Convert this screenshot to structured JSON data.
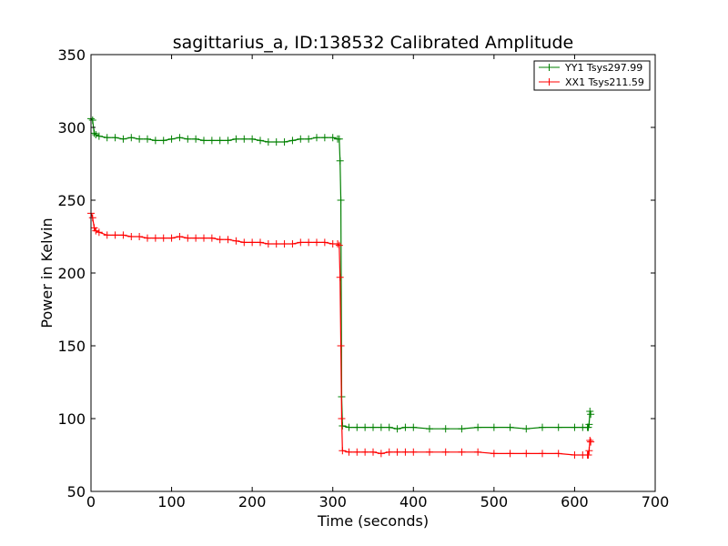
{
  "chart_data": {
    "type": "line",
    "title": "sagittarius_a, ID:138532 Calibrated Amplitude",
    "xlabel": "Time (seconds)",
    "ylabel": "Power in Kelvin",
    "xlim": [
      0,
      700
    ],
    "ylim": [
      50,
      350
    ],
    "xticks": [
      0,
      100,
      200,
      300,
      400,
      500,
      600,
      700
    ],
    "yticks": [
      50,
      100,
      150,
      200,
      250,
      300,
      350
    ],
    "grid": false,
    "legend_position": "top-right",
    "series": [
      {
        "name": "YY1 Tsys297.99",
        "color": "#008000",
        "marker": "+",
        "x": [
          0,
          2,
          4,
          6,
          10,
          20,
          30,
          40,
          50,
          60,
          70,
          80,
          90,
          100,
          110,
          120,
          130,
          140,
          150,
          160,
          170,
          180,
          190,
          200,
          210,
          220,
          230,
          240,
          250,
          260,
          270,
          280,
          290,
          300,
          306,
          308,
          309,
          310,
          311,
          312,
          320,
          330,
          340,
          350,
          360,
          370,
          380,
          390,
          400,
          420,
          440,
          460,
          480,
          500,
          520,
          540,
          560,
          580,
          600,
          610,
          616,
          617,
          618,
          619,
          620
        ],
        "y": [
          306,
          305,
          296,
          295,
          294,
          293,
          293,
          292,
          293,
          292,
          292,
          291,
          291,
          292,
          293,
          292,
          292,
          291,
          291,
          291,
          291,
          292,
          292,
          292,
          291,
          290,
          290,
          290,
          291,
          292,
          292,
          293,
          293,
          293,
          292,
          292,
          277,
          250,
          115,
          95,
          94,
          94,
          94,
          94,
          94,
          94,
          93,
          94,
          94,
          93,
          93,
          93,
          94,
          94,
          94,
          93,
          94,
          94,
          94,
          94,
          94,
          94,
          96,
          105,
          103
        ]
      },
      {
        "name": "XX1 Tsys211.59",
        "color": "#ff0000",
        "marker": "+",
        "x": [
          0,
          2,
          4,
          6,
          10,
          20,
          30,
          40,
          50,
          60,
          70,
          80,
          90,
          100,
          110,
          120,
          130,
          140,
          150,
          160,
          170,
          180,
          190,
          200,
          210,
          220,
          230,
          240,
          250,
          260,
          270,
          280,
          290,
          300,
          306,
          308,
          309,
          310,
          311,
          312,
          320,
          330,
          340,
          350,
          360,
          370,
          380,
          390,
          400,
          420,
          440,
          460,
          480,
          500,
          520,
          540,
          560,
          580,
          600,
          610,
          616,
          617,
          618,
          619,
          620
        ],
        "y": [
          241,
          238,
          231,
          229,
          228,
          226,
          226,
          226,
          225,
          225,
          224,
          224,
          224,
          224,
          225,
          224,
          224,
          224,
          224,
          223,
          223,
          222,
          221,
          221,
          221,
          220,
          220,
          220,
          220,
          221,
          221,
          221,
          221,
          220,
          220,
          219,
          197,
          150,
          100,
          78,
          77,
          77,
          77,
          77,
          76,
          77,
          77,
          77,
          77,
          77,
          77,
          77,
          77,
          76,
          76,
          76,
          76,
          76,
          75,
          75,
          75,
          75,
          78,
          85,
          84
        ]
      }
    ]
  }
}
